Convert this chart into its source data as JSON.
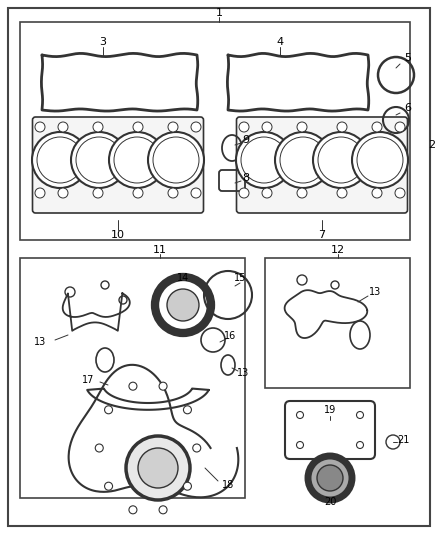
{
  "bg_color": "#ffffff",
  "border_color": "#444444",
  "line_color": "#333333",
  "label_color": "#000000",
  "figsize": [
    4.38,
    5.33
  ],
  "dpi": 100
}
